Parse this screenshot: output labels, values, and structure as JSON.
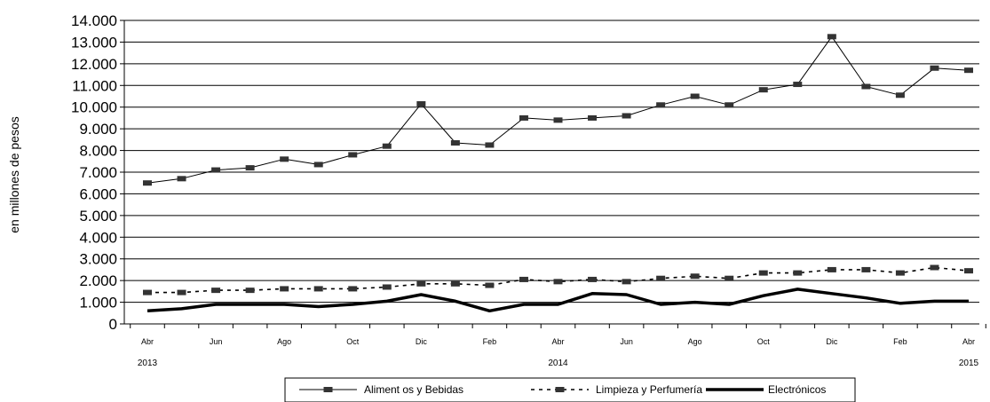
{
  "chart_data": {
    "type": "line",
    "ylabel": "en millones de pesos",
    "ylim": [
      0,
      14000
    ],
    "yticks": [
      "0",
      "1.000",
      "2.000",
      "3.000",
      "4.000",
      "5.000",
      "6.000",
      "7.000",
      "8.000",
      "9.000",
      "10.000",
      "11.000",
      "12.000",
      "13.000",
      "14.000"
    ],
    "x": [
      "2013-04",
      "2013-05",
      "2013-06",
      "2013-07",
      "2013-08",
      "2013-09",
      "2013-10",
      "2013-11",
      "2013-12",
      "2014-01",
      "2014-02",
      "2014-03",
      "2014-04",
      "2014-05",
      "2014-06",
      "2014-07",
      "2014-08",
      "2014-09",
      "2014-10",
      "2014-11",
      "2014-12",
      "2015-01",
      "2015-02",
      "2015-03",
      "2015-04"
    ],
    "x_tick_labels": [
      "Abr",
      "",
      "Jun",
      "",
      "Ago",
      "",
      "Oct",
      "",
      "Dic",
      "",
      "Feb",
      "",
      "Abr",
      "",
      "Jun",
      "",
      "Ago",
      "",
      "Oct",
      "",
      "Dic",
      "",
      "Feb",
      "",
      "Abr"
    ],
    "year_labels": [
      {
        "label": "2013",
        "index": 0
      },
      {
        "label": "2014",
        "index": 12
      },
      {
        "label": "2015",
        "index": 24
      }
    ],
    "grid": true,
    "legend_position": "bottom",
    "series": [
      {
        "name": "Aliment os y Bebidas",
        "style": "thin-solid-markers",
        "color": "#000000",
        "values": [
          6500,
          6700,
          7100,
          7200,
          7600,
          7350,
          7800,
          8200,
          10150,
          8350,
          8250,
          9500,
          9400,
          9500,
          9600,
          10100,
          10500,
          10100,
          10800,
          11050,
          13250,
          10950,
          10550,
          11800,
          11700
        ]
      },
      {
        "name": "Limpieza y Perfumería",
        "style": "dashed-markers",
        "color": "#000000",
        "values": [
          1450,
          1450,
          1550,
          1550,
          1620,
          1620,
          1620,
          1700,
          1850,
          1850,
          1780,
          2050,
          1950,
          2050,
          1950,
          2100,
          2200,
          2100,
          2350,
          2350,
          2500,
          2500,
          2350,
          2600,
          2450
        ]
      },
      {
        "name": "Electrónicos",
        "style": "thick-solid",
        "color": "#000000",
        "values": [
          600,
          700,
          900,
          900,
          900,
          800,
          900,
          1050,
          1350,
          1050,
          600,
          900,
          900,
          1400,
          1350,
          900,
          1000,
          900,
          1300,
          1600,
          1400,
          1200,
          950,
          1050,
          1050
        ]
      }
    ]
  }
}
